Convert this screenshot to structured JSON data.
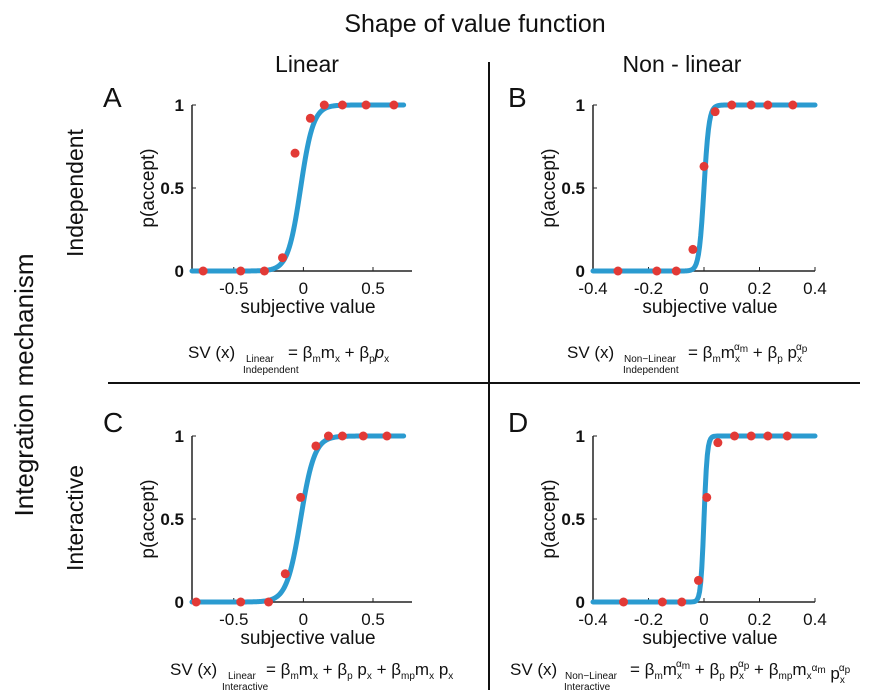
{
  "figure": {
    "title": "Shape of value function",
    "column_labels": [
      "Linear",
      "Non - linear"
    ],
    "row_group_label": "Integration mechanism",
    "row_labels": [
      "Independent",
      "Interactive"
    ]
  },
  "colors": {
    "curve": "#2b9bd0",
    "points": "#e23a36",
    "axis": "#222222",
    "divider": "#111111"
  },
  "chart_data": [
    {
      "type": "scatter",
      "panel": "A",
      "xlabel": "subjective value",
      "ylabel": "p(accept)",
      "xlim": [
        -0.8,
        0.78
      ],
      "ylim": [
        0,
        1
      ],
      "xticks": [
        -0.5,
        0,
        0.5
      ],
      "xticklabels": [
        "-0.5",
        "0",
        "0.5"
      ],
      "yticks": [
        0,
        0.5,
        1
      ],
      "yticklabels": [
        "0",
        "0.5",
        "1"
      ],
      "series": [
        {
          "kind": "points",
          "x": [
            -0.72,
            -0.45,
            -0.28,
            -0.15,
            -0.06,
            0.05,
            0.15,
            0.28,
            0.45,
            0.65
          ],
          "y": [
            0,
            0,
            0,
            0.08,
            0.71,
            0.92,
            1.0,
            1.0,
            1.0,
            1.0
          ]
        },
        {
          "kind": "fit",
          "model": "logistic",
          "center": -0.02,
          "slope": 22,
          "x_range": [
            -0.8,
            0.72
          ]
        }
      ],
      "formula": {
        "lhs": "SV (x)",
        "sub_top": "Linear",
        "sub_bottom": "Independent",
        "rhs": "= βₘmₓ + βₚpₓ"
      }
    },
    {
      "type": "scatter",
      "panel": "B",
      "xlabel": "subjective value",
      "ylabel": "p(accept)",
      "xlim": [
        -0.4,
        0.4
      ],
      "ylim": [
        0,
        1
      ],
      "xticks": [
        -0.4,
        -0.2,
        0,
        0.2,
        0.4
      ],
      "xticklabels": [
        "-0.4",
        "-0.2",
        "0",
        "0.2",
        "0.4"
      ],
      "yticks": [
        0,
        0.5,
        1
      ],
      "yticklabels": [
        "0",
        "0.5",
        "1"
      ],
      "series": [
        {
          "kind": "points",
          "x": [
            -0.31,
            -0.17,
            -0.1,
            -0.04,
            0.0,
            0.04,
            0.1,
            0.17,
            0.23,
            0.32
          ],
          "y": [
            0,
            0,
            0,
            0.13,
            0.63,
            0.96,
            1.0,
            1.0,
            1.0,
            1.0
          ]
        },
        {
          "kind": "fit",
          "model": "logistic",
          "center": 0.0,
          "slope": 110,
          "x_range": [
            -0.4,
            0.4
          ]
        }
      ],
      "formula": {
        "lhs": "SV (x)",
        "sub_top": "Non−Linear",
        "sub_bottom": "Independent",
        "rhs": "= βₘmₓ^αₘ + βₚ pₓ^αₚ"
      }
    },
    {
      "type": "scatter",
      "panel": "C",
      "xlabel": "subjective value",
      "ylabel": "p(accept)",
      "xlim": [
        -0.8,
        0.78
      ],
      "ylim": [
        0,
        1
      ],
      "xticks": [
        -0.5,
        0,
        0.5
      ],
      "xticklabels": [
        "-0.5",
        "0",
        "0.5"
      ],
      "yticks": [
        0,
        0.5,
        1
      ],
      "yticklabels": [
        "0",
        "0.5",
        "1"
      ],
      "series": [
        {
          "kind": "points",
          "x": [
            -0.77,
            -0.45,
            -0.25,
            -0.13,
            -0.02,
            0.09,
            0.18,
            0.28,
            0.43,
            0.6
          ],
          "y": [
            0,
            0,
            0,
            0.17,
            0.63,
            0.94,
            1.0,
            1.0,
            1.0,
            1.0
          ]
        },
        {
          "kind": "fit",
          "model": "logistic",
          "center": -0.02,
          "slope": 20,
          "x_range": [
            -0.8,
            0.72
          ]
        }
      ],
      "formula": {
        "lhs": "SV (x)",
        "sub_top": "Linear",
        "sub_bottom": "Interactive",
        "rhs": "= βₘmₓ + βₚ pₓ + βₘₚmₓ pₓ"
      }
    },
    {
      "type": "scatter",
      "panel": "D",
      "xlabel": "subjective value",
      "ylabel": "p(accept)",
      "xlim": [
        -0.4,
        0.4
      ],
      "ylim": [
        0,
        1
      ],
      "xticks": [
        -0.4,
        -0.2,
        0,
        0.2,
        0.4
      ],
      "xticklabels": [
        "-0.4",
        "-0.2",
        "0",
        "0.2",
        "0.4"
      ],
      "yticks": [
        0,
        0.5,
        1
      ],
      "yticklabels": [
        "0",
        "0.5",
        "1"
      ],
      "series": [
        {
          "kind": "points",
          "x": [
            -0.29,
            -0.15,
            -0.08,
            -0.02,
            0.01,
            0.05,
            0.11,
            0.17,
            0.23,
            0.3
          ],
          "y": [
            0,
            0,
            0,
            0.13,
            0.63,
            0.96,
            1.0,
            1.0,
            1.0,
            1.0
          ]
        },
        {
          "kind": "fit",
          "model": "logistic",
          "center": 0.0,
          "slope": 170,
          "x_range": [
            -0.4,
            0.4
          ]
        }
      ],
      "formula": {
        "lhs": "SV (x)",
        "sub_top": "Non−Linear",
        "sub_bottom": "Interactive",
        "rhs": "= βₘmₓ^αₘ + βₚ pₓ^αₚ + βₘₚmₓ^αₘ pₓ^αₚ"
      }
    }
  ]
}
